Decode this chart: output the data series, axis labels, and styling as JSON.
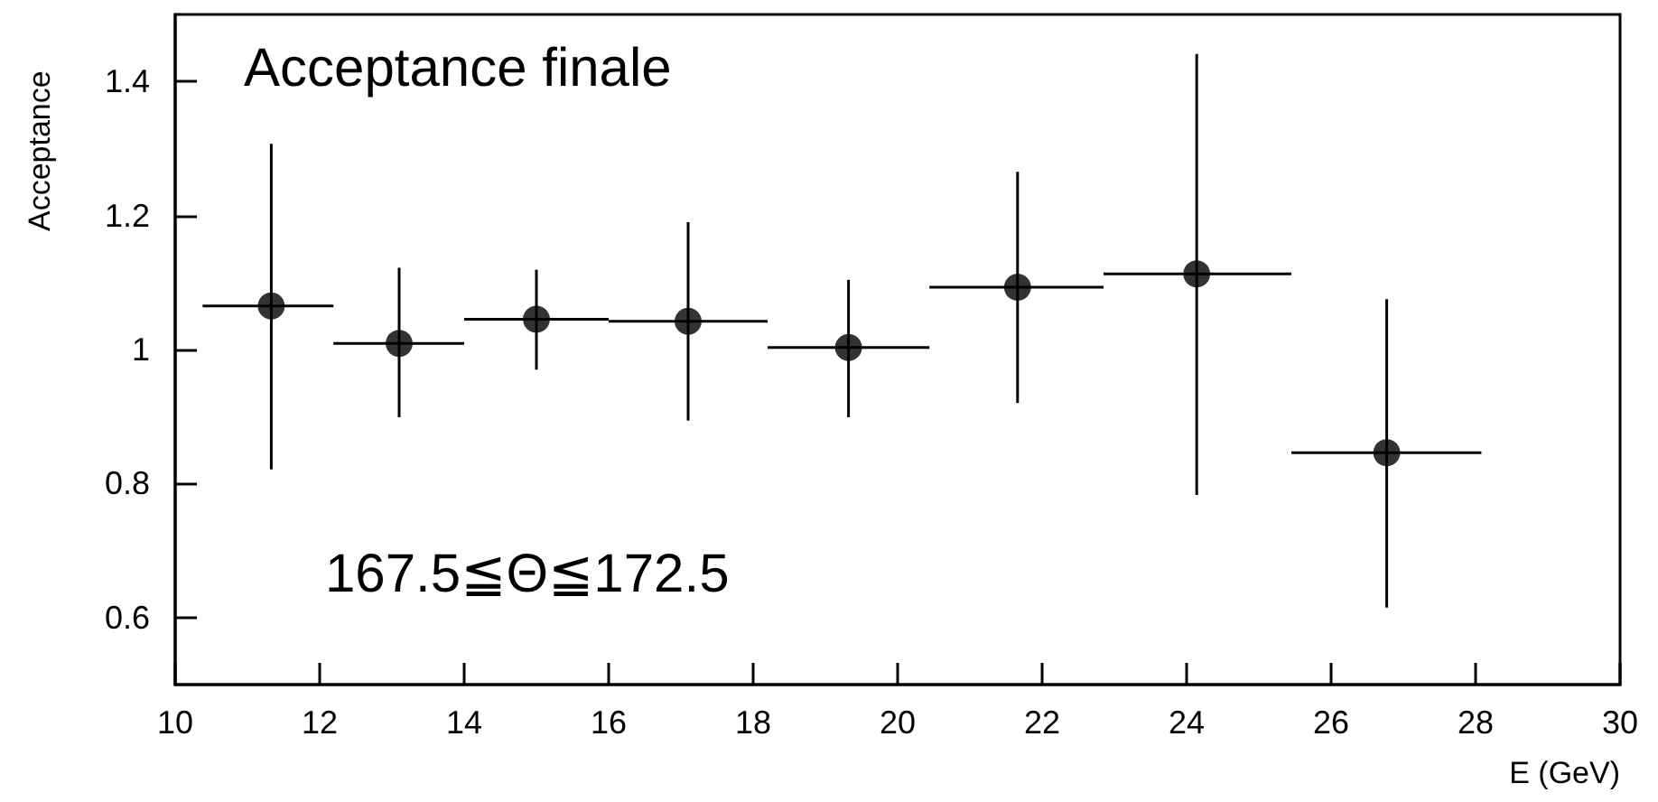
{
  "chart_data": {
    "type": "scatter",
    "title": "Acceptance finale",
    "xlabel": "E (GeV)",
    "ylabel": "Acceptance",
    "annotations": [
      "167.5≦Θ≦172.5"
    ],
    "x": [
      11.33,
      13.1,
      15.0,
      17.1,
      19.32,
      21.66,
      24.14,
      26.77
    ],
    "values": [
      1.065,
      1.009,
      1.045,
      1.042,
      1.003,
      1.093,
      1.113,
      0.846
    ],
    "errors": [
      [
        0.821,
        1.307
      ],
      [
        0.899,
        1.122
      ],
      [
        0.97,
        1.119
      ],
      [
        0.894,
        1.19
      ],
      [
        0.899,
        1.104
      ],
      [
        0.92,
        1.265
      ],
      [
        0.783,
        1.441
      ],
      [
        0.615,
        1.075
      ]
    ],
    "xerrors": [
      [
        10.38,
        12.19
      ],
      [
        12.19,
        14.0
      ],
      [
        14.0,
        16.0
      ],
      [
        16.0,
        18.2
      ],
      [
        18.2,
        20.44
      ],
      [
        20.44,
        22.85
      ],
      [
        22.85,
        25.45
      ],
      [
        25.45,
        28.08
      ]
    ],
    "color": "#000000",
    "marker": "circle",
    "xlim": [
      10,
      30
    ],
    "xticks": [
      10,
      12,
      14,
      16,
      18,
      20,
      22,
      24,
      26,
      28,
      30
    ],
    "ylim": [
      0.5,
      1.5
    ],
    "yticks": [
      0.6,
      0.8,
      1,
      1.2,
      1.4
    ]
  }
}
